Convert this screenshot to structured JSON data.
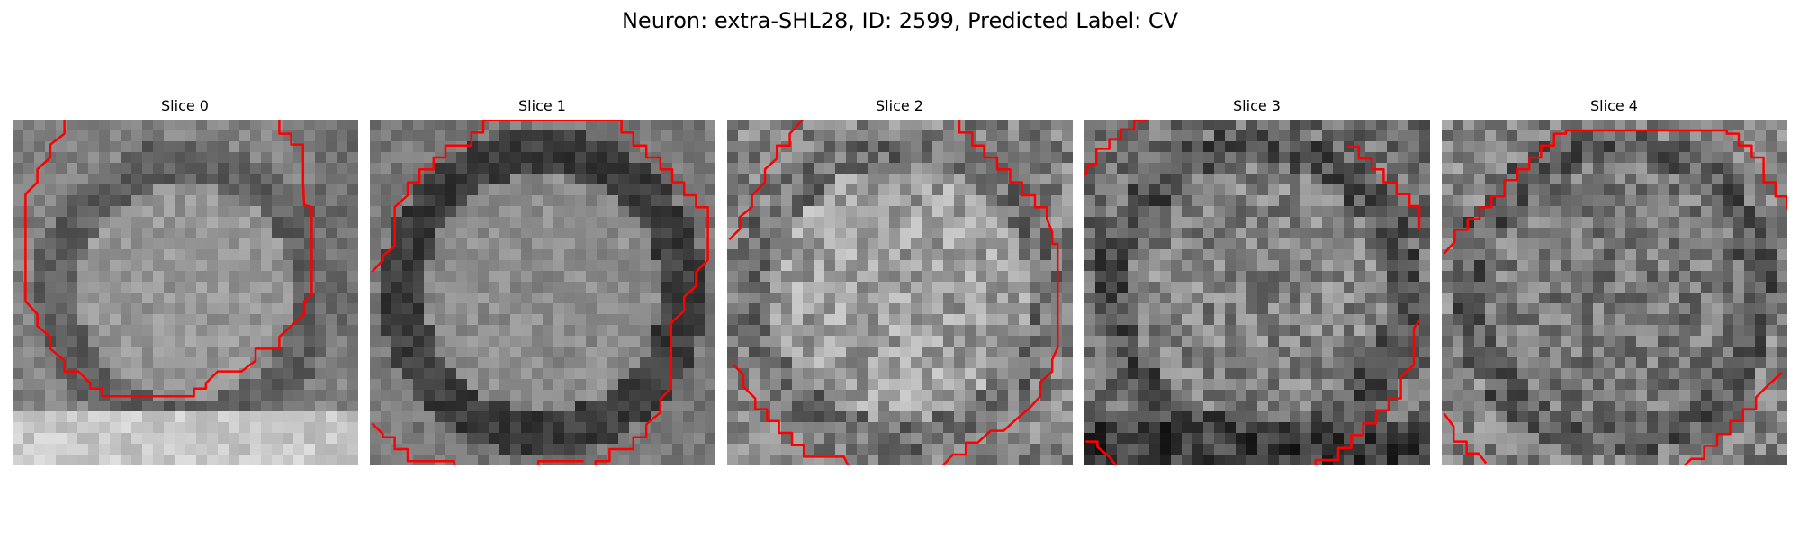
{
  "figure": {
    "title": "Neuron: extra-SHL28, ID: 2599, Predicted Label: CV"
  },
  "panels": [
    {
      "title": "Slice 0"
    },
    {
      "title": "Slice 1"
    },
    {
      "title": "Slice 2"
    },
    {
      "title": "Slice 3"
    },
    {
      "title": "Slice 4"
    }
  ],
  "colors": {
    "contour": "#ff0000",
    "background": "#ffffff"
  }
}
